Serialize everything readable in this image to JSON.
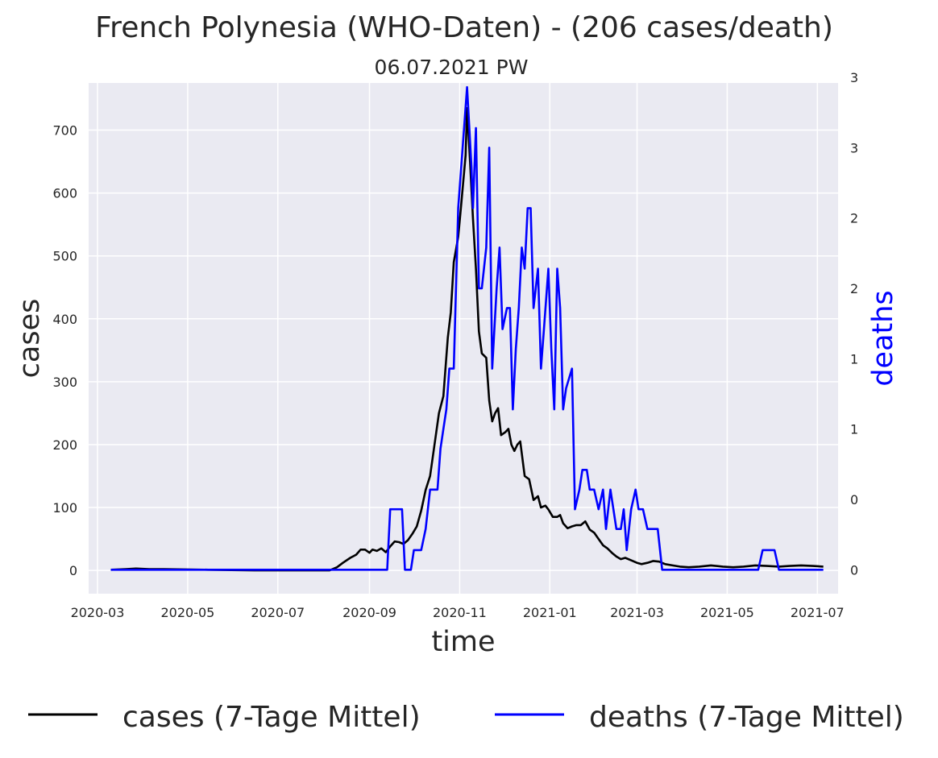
{
  "chart_data": {
    "type": "line",
    "title": "French Polynesia (WHO-Daten) - (206 cases/death)",
    "subtitle": "06.07.2021 PW",
    "xlabel": "time",
    "ylabel_left": "cases",
    "ylabel_right": "deaths",
    "x_ticks": [
      "2020-03",
      "2020-05",
      "2020-07",
      "2020-09",
      "2020-11",
      "2021-01",
      "2021-03",
      "2021-05",
      "2021-07"
    ],
    "y_left_ticks": [
      "0",
      "100",
      "200",
      "300",
      "400",
      "500",
      "600",
      "700"
    ],
    "y_right_ticks": [
      "0",
      "0",
      "1",
      "1",
      "2",
      "2",
      "3",
      "3"
    ],
    "y_left_range": [
      -37,
      775
    ],
    "y_right_range": [
      -0.17,
      3.46
    ],
    "x_range": [
      "2020-02-24",
      "2021-07-15"
    ],
    "grid": true,
    "legend_position": "bottom",
    "colors": {
      "cases": "#000000",
      "deaths": "#0000ff",
      "background": "#eaeaf2",
      "grid": "#ffffff"
    },
    "series": [
      {
        "name": "cases (7-Tage Mittel)",
        "axis": "left",
        "color": "#000000",
        "points": [
          [
            "2020-03-10",
            1
          ],
          [
            "2020-03-20",
            2
          ],
          [
            "2020-03-27",
            3
          ],
          [
            "2020-04-05",
            2
          ],
          [
            "2020-04-15",
            2
          ],
          [
            "2020-05-15",
            1
          ],
          [
            "2020-06-15",
            0
          ],
          [
            "2020-07-15",
            0
          ],
          [
            "2020-08-05",
            0
          ],
          [
            "2020-08-10",
            5
          ],
          [
            "2020-08-14",
            12
          ],
          [
            "2020-08-19",
            20
          ],
          [
            "2020-08-23",
            25
          ],
          [
            "2020-08-26",
            33
          ],
          [
            "2020-08-29",
            33
          ],
          [
            "2020-09-01",
            28
          ],
          [
            "2020-09-03",
            33
          ],
          [
            "2020-09-06",
            31
          ],
          [
            "2020-09-09",
            35
          ],
          [
            "2020-09-12",
            29
          ],
          [
            "2020-09-15",
            38
          ],
          [
            "2020-09-18",
            46
          ],
          [
            "2020-09-21",
            45
          ],
          [
            "2020-09-24",
            42
          ],
          [
            "2020-09-27",
            48
          ],
          [
            "2020-09-30",
            58
          ],
          [
            "2020-10-03",
            70
          ],
          [
            "2020-10-06",
            95
          ],
          [
            "2020-10-09",
            128
          ],
          [
            "2020-10-12",
            150
          ],
          [
            "2020-10-15",
            200
          ],
          [
            "2020-10-18",
            250
          ],
          [
            "2020-10-21",
            277
          ],
          [
            "2020-10-24",
            370
          ],
          [
            "2020-10-26",
            410
          ],
          [
            "2020-10-28",
            490
          ],
          [
            "2020-10-31",
            530
          ],
          [
            "2020-11-02",
            580
          ],
          [
            "2020-11-05",
            660
          ],
          [
            "2020-11-06",
            735
          ],
          [
            "2020-11-08",
            650
          ],
          [
            "2020-11-10",
            560
          ],
          [
            "2020-11-12",
            480
          ],
          [
            "2020-11-14",
            380
          ],
          [
            "2020-11-16",
            345
          ],
          [
            "2020-11-19",
            338
          ],
          [
            "2020-11-21",
            270
          ],
          [
            "2020-11-23",
            237
          ],
          [
            "2020-11-25",
            250
          ],
          [
            "2020-11-27",
            258
          ],
          [
            "2020-11-29",
            215
          ],
          [
            "2020-12-02",
            220
          ],
          [
            "2020-12-04",
            225
          ],
          [
            "2020-12-06",
            200
          ],
          [
            "2020-12-08",
            190
          ],
          [
            "2020-12-10",
            200
          ],
          [
            "2020-12-12",
            205
          ],
          [
            "2020-12-15",
            150
          ],
          [
            "2020-12-18",
            145
          ],
          [
            "2020-12-21",
            112
          ],
          [
            "2020-12-24",
            118
          ],
          [
            "2020-12-26",
            100
          ],
          [
            "2020-12-29",
            103
          ],
          [
            "2020-12-31",
            97
          ],
          [
            "2021-01-03",
            85
          ],
          [
            "2021-01-06",
            85
          ],
          [
            "2021-01-08",
            88
          ],
          [
            "2021-01-10",
            75
          ],
          [
            "2021-01-13",
            67
          ],
          [
            "2021-01-16",
            70
          ],
          [
            "2021-01-19",
            72
          ],
          [
            "2021-01-22",
            72
          ],
          [
            "2021-01-25",
            78
          ],
          [
            "2021-01-28",
            65
          ],
          [
            "2021-01-31",
            60
          ],
          [
            "2021-02-03",
            50
          ],
          [
            "2021-02-06",
            40
          ],
          [
            "2021-02-09",
            35
          ],
          [
            "2021-02-12",
            28
          ],
          [
            "2021-02-15",
            22
          ],
          [
            "2021-02-18",
            18
          ],
          [
            "2021-02-21",
            20
          ],
          [
            "2021-02-25",
            16
          ],
          [
            "2021-03-01",
            12
          ],
          [
            "2021-03-04",
            10
          ],
          [
            "2021-03-08",
            12
          ],
          [
            "2021-03-12",
            15
          ],
          [
            "2021-03-16",
            14
          ],
          [
            "2021-03-20",
            10
          ],
          [
            "2021-03-25",
            8
          ],
          [
            "2021-03-30",
            6
          ],
          [
            "2021-04-05",
            5
          ],
          [
            "2021-04-12",
            6
          ],
          [
            "2021-04-20",
            8
          ],
          [
            "2021-04-28",
            6
          ],
          [
            "2021-05-05",
            5
          ],
          [
            "2021-05-12",
            6
          ],
          [
            "2021-05-20",
            8
          ],
          [
            "2021-05-28",
            7
          ],
          [
            "2021-06-05",
            6
          ],
          [
            "2021-06-12",
            7
          ],
          [
            "2021-06-20",
            8
          ],
          [
            "2021-06-28",
            7
          ],
          [
            "2021-07-05",
            6
          ]
        ]
      },
      {
        "name": "deaths (7-Tage Mittel)",
        "axis": "right",
        "color": "#0000ff",
        "points": [
          [
            "2020-03-10",
            0
          ],
          [
            "2020-09-13",
            0
          ],
          [
            "2020-09-15",
            0.43
          ],
          [
            "2020-09-23",
            0.43
          ],
          [
            "2020-09-25",
            0
          ],
          [
            "2020-09-29",
            0
          ],
          [
            "2020-10-01",
            0.14
          ],
          [
            "2020-10-06",
            0.14
          ],
          [
            "2020-10-09",
            0.29
          ],
          [
            "2020-10-12",
            0.57
          ],
          [
            "2020-10-17",
            0.57
          ],
          [
            "2020-10-19",
            0.86
          ],
          [
            "2020-10-21",
            1
          ],
          [
            "2020-10-23",
            1.14
          ],
          [
            "2020-10-25",
            1.43
          ],
          [
            "2020-10-28",
            1.43
          ],
          [
            "2020-10-31",
            2.57
          ],
          [
            "2020-11-03",
            3
          ],
          [
            "2020-11-06",
            3.43
          ],
          [
            "2020-11-09",
            2.86
          ],
          [
            "2020-11-10",
            2.57
          ],
          [
            "2020-11-12",
            3.14
          ],
          [
            "2020-11-14",
            2
          ],
          [
            "2020-11-16",
            2
          ],
          [
            "2020-11-19",
            2.29
          ],
          [
            "2020-11-21",
            3
          ],
          [
            "2020-11-23",
            1.43
          ],
          [
            "2020-11-26",
            2
          ],
          [
            "2020-11-28",
            2.29
          ],
          [
            "2020-11-30",
            1.71
          ],
          [
            "2020-12-03",
            1.86
          ],
          [
            "2020-12-05",
            1.86
          ],
          [
            "2020-12-07",
            1.14
          ],
          [
            "2020-12-09",
            1.57
          ],
          [
            "2020-12-11",
            1.86
          ],
          [
            "2020-12-13",
            2.29
          ],
          [
            "2020-12-15",
            2.14
          ],
          [
            "2020-12-17",
            2.57
          ],
          [
            "2020-12-19",
            2.57
          ],
          [
            "2020-12-21",
            1.86
          ],
          [
            "2020-12-24",
            2.14
          ],
          [
            "2020-12-26",
            1.43
          ],
          [
            "2020-12-28",
            1.71
          ],
          [
            "2020-12-31",
            2.14
          ],
          [
            "2021-01-02",
            1.57
          ],
          [
            "2021-01-04",
            1.14
          ],
          [
            "2021-01-06",
            2.14
          ],
          [
            "2021-01-08",
            1.86
          ],
          [
            "2021-01-10",
            1.14
          ],
          [
            "2021-01-12",
            1.29
          ],
          [
            "2021-01-16",
            1.43
          ],
          [
            "2021-01-18",
            0.43
          ],
          [
            "2021-01-21",
            0.57
          ],
          [
            "2021-01-23",
            0.71
          ],
          [
            "2021-01-26",
            0.71
          ],
          [
            "2021-01-28",
            0.57
          ],
          [
            "2021-01-31",
            0.57
          ],
          [
            "2021-02-03",
            0.43
          ],
          [
            "2021-02-06",
            0.57
          ],
          [
            "2021-02-08",
            0.29
          ],
          [
            "2021-02-11",
            0.57
          ],
          [
            "2021-02-13",
            0.43
          ],
          [
            "2021-02-15",
            0.29
          ],
          [
            "2021-02-18",
            0.29
          ],
          [
            "2021-02-20",
            0.43
          ],
          [
            "2021-02-22",
            0.14
          ],
          [
            "2021-02-25",
            0.43
          ],
          [
            "2021-02-28",
            0.57
          ],
          [
            "2021-03-02",
            0.43
          ],
          [
            "2021-03-05",
            0.43
          ],
          [
            "2021-03-08",
            0.29
          ],
          [
            "2021-03-15",
            0.29
          ],
          [
            "2021-03-18",
            0
          ],
          [
            "2021-05-22",
            0
          ],
          [
            "2021-05-25",
            0.14
          ],
          [
            "2021-06-02",
            0.14
          ],
          [
            "2021-06-05",
            0
          ],
          [
            "2021-07-05",
            0
          ]
        ]
      }
    ]
  }
}
